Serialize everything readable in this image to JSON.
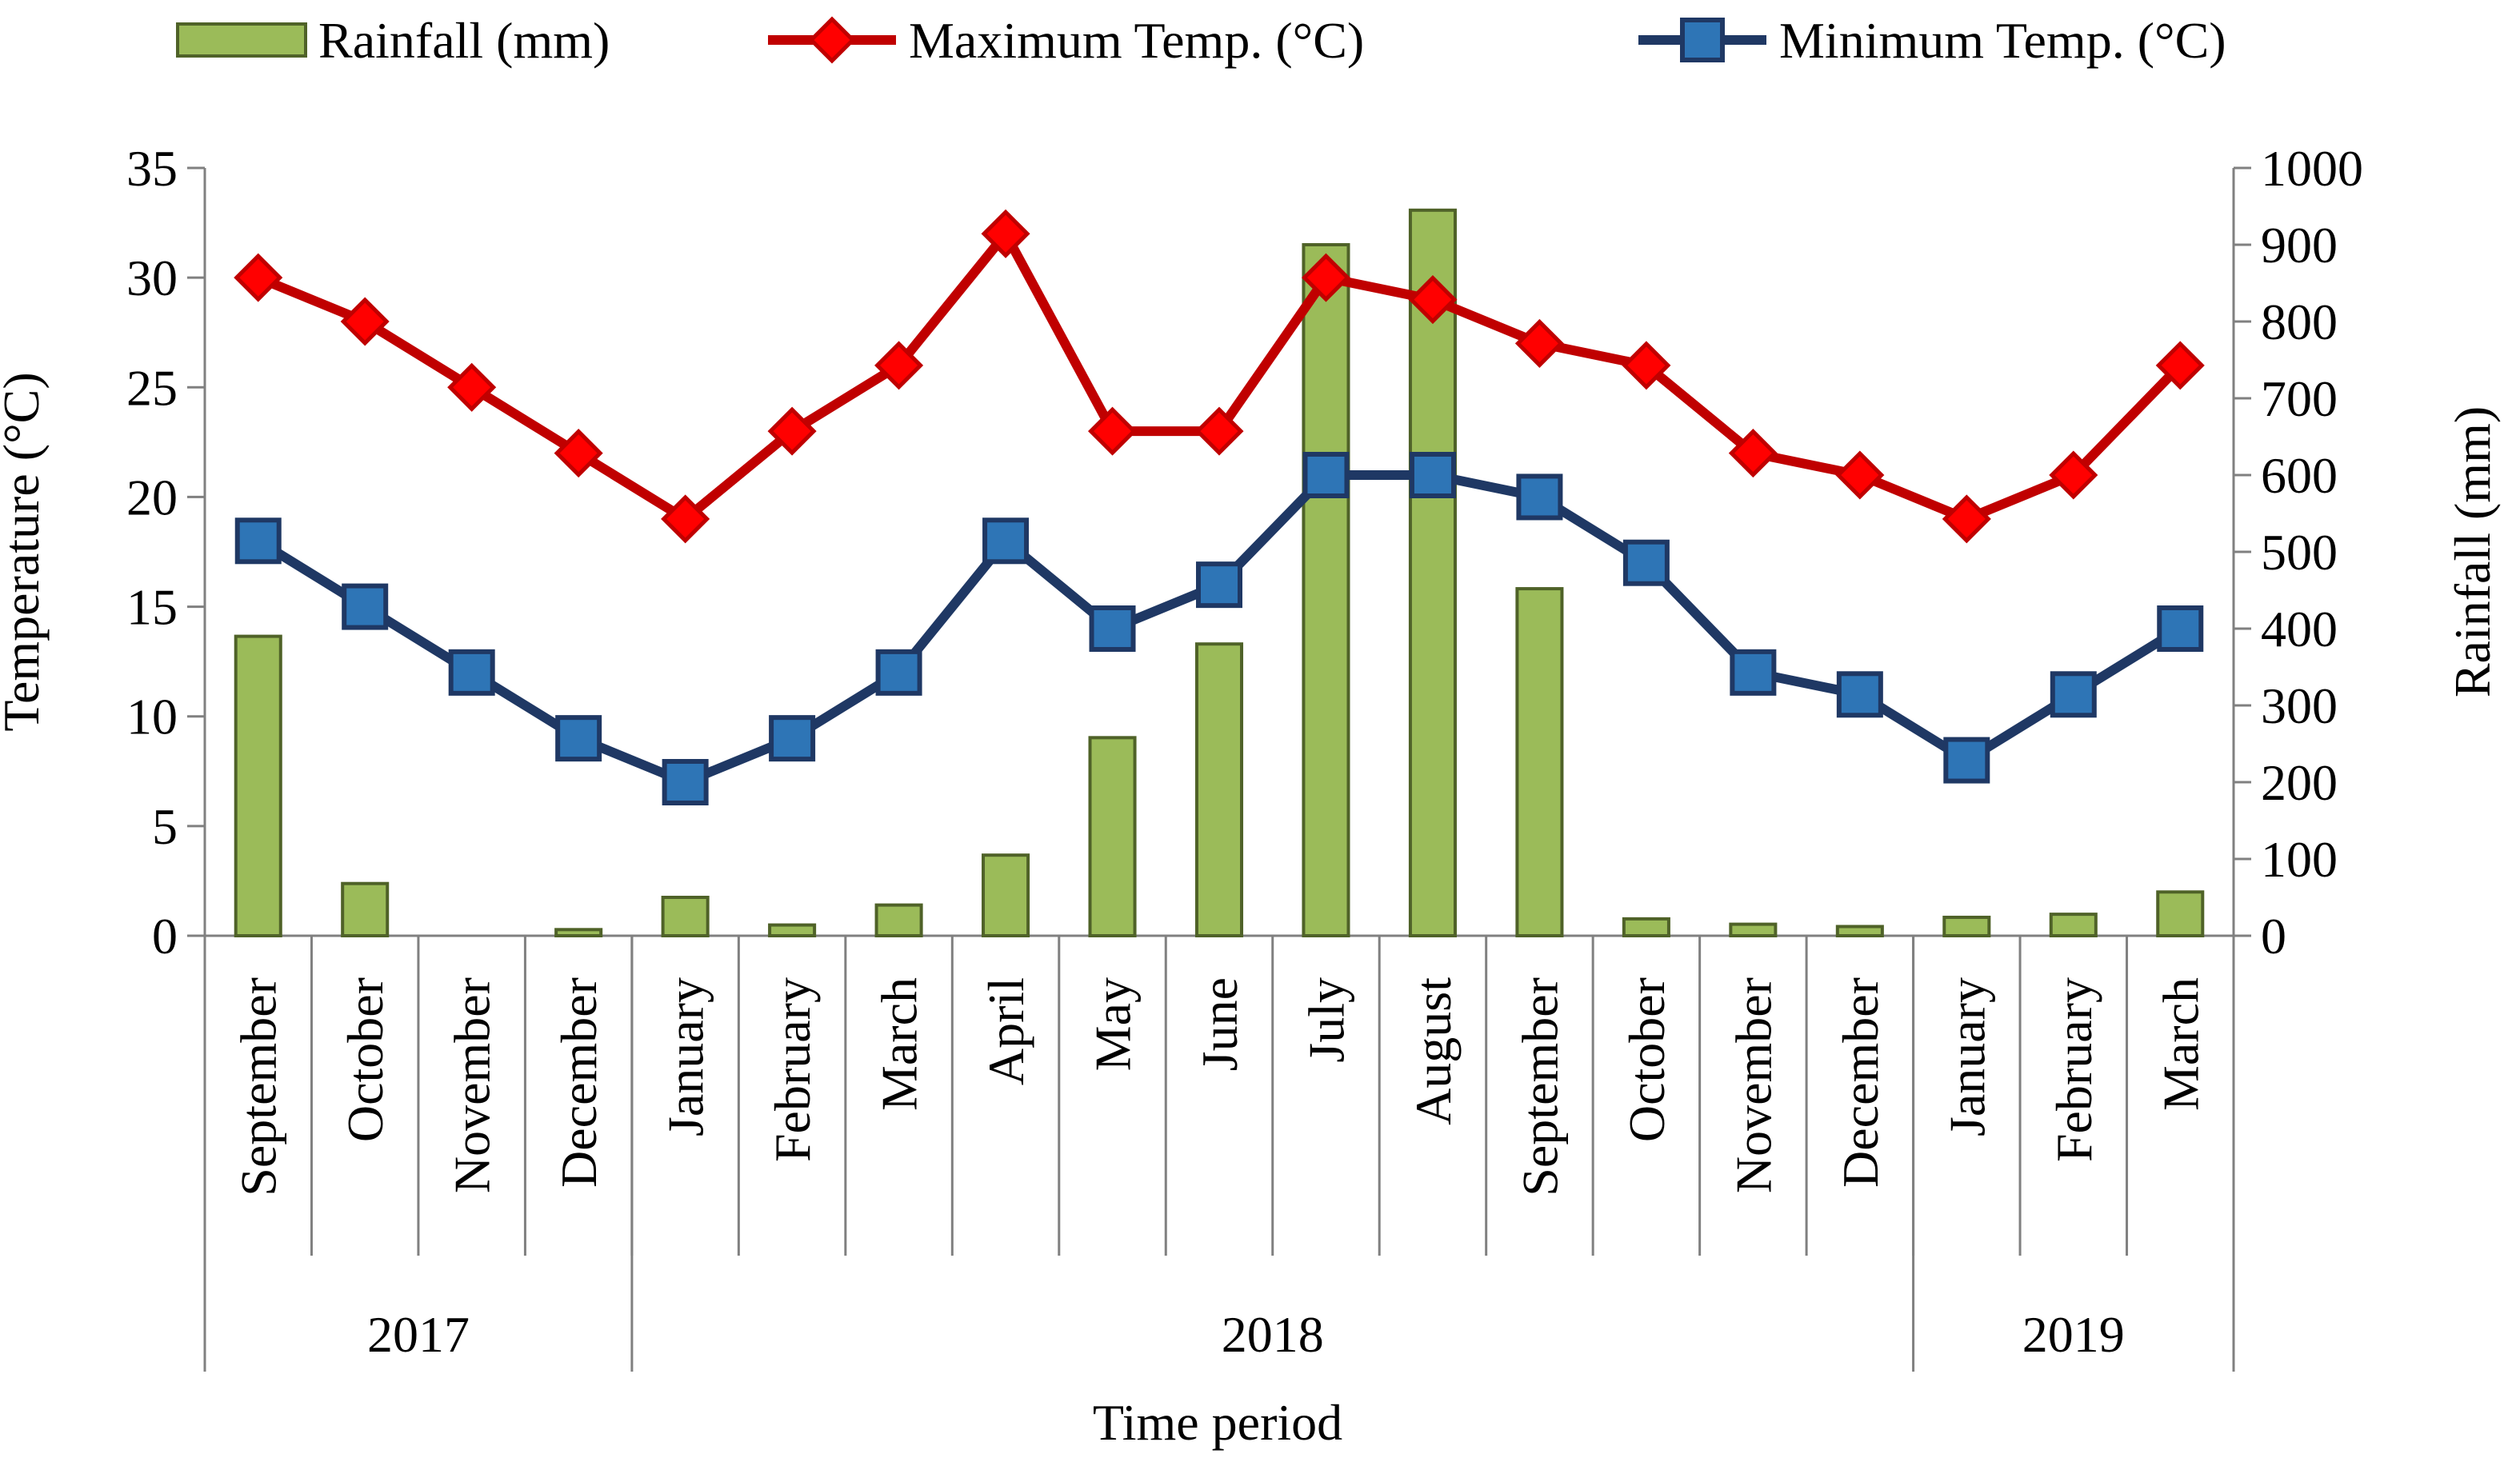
{
  "chart_data": {
    "type": "bar+line",
    "title": "",
    "xlabel": "Time period",
    "ylabel_left": "Temperature (°C)",
    "ylabel_right": "Rainfall (mm)",
    "ylim_left": [
      0,
      35
    ],
    "ylim_right": [
      0,
      1000
    ],
    "yticks_left": [
      "0",
      "5",
      "10",
      "15",
      "20",
      "25",
      "30",
      "35"
    ],
    "yticks_right": [
      "0",
      "100",
      "200",
      "300",
      "400",
      "500",
      "600",
      "700",
      "800",
      "900",
      "1000"
    ],
    "categories": [
      "September",
      "October",
      "November",
      "December",
      "January",
      "February",
      "March",
      "April",
      "May",
      "June",
      "July",
      "August",
      "September",
      "October",
      "November",
      "December",
      "January",
      "February",
      "March"
    ],
    "year_groups": [
      {
        "label": "2017",
        "span": 4
      },
      {
        "label": "2018",
        "span": 12
      },
      {
        "label": "2019",
        "span": 3
      }
    ],
    "legend_position": "top",
    "series": [
      {
        "name": "Rainfall (mm)",
        "kind": "bar",
        "axis": "right",
        "color": "#9BBB59",
        "edge": "#4F6228",
        "values": [
          390,
          68,
          0,
          8,
          50,
          14,
          40,
          105,
          258,
          380,
          900,
          945,
          452,
          22,
          15,
          12,
          24,
          28,
          57
        ]
      },
      {
        "name": "Maximum Temp. (°C)",
        "kind": "line",
        "axis": "left",
        "marker": "diamond",
        "color": "#C00000",
        "values": [
          30,
          28,
          25,
          22,
          19,
          23,
          26,
          32,
          23,
          23,
          30,
          29,
          27,
          26,
          22,
          21,
          19,
          21,
          26
        ]
      },
      {
        "name": "Minimum Temp. (°C)",
        "kind": "line",
        "axis": "left",
        "marker": "square",
        "color": "#1F3864",
        "marker_fill": "#2E75B6",
        "values": [
          18,
          15,
          12,
          9,
          7,
          9,
          12,
          18,
          14,
          16,
          21,
          21,
          20,
          17,
          12,
          11,
          8,
          11,
          14
        ]
      }
    ]
  }
}
